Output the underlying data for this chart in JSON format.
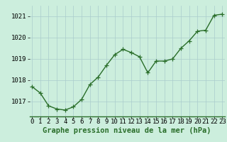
{
  "x": [
    0,
    1,
    2,
    3,
    4,
    5,
    6,
    7,
    8,
    9,
    10,
    11,
    12,
    13,
    14,
    15,
    16,
    17,
    18,
    19,
    20,
    21,
    22,
    23
  ],
  "y": [
    1017.7,
    1017.4,
    1016.8,
    1016.65,
    1016.6,
    1016.75,
    1017.1,
    1017.8,
    1018.15,
    1018.7,
    1019.2,
    1019.45,
    1019.3,
    1019.1,
    1018.35,
    1018.9,
    1018.9,
    1019.0,
    1019.5,
    1019.85,
    1020.3,
    1020.35,
    1021.05,
    1021.1
  ],
  "line_color": "#2a6e2a",
  "marker_color": "#2a6e2a",
  "bg_color": "#cceedd",
  "grid_color": "#aacccc",
  "bottom_bar_color": "#2a6e2a",
  "xlabel": "Graphe pression niveau de la mer (hPa)",
  "xlabel_fontsize": 7.5,
  "tick_fontsize": 6.5,
  "ylim": [
    1016.3,
    1021.5
  ],
  "yticks": [
    1017,
    1018,
    1019,
    1020,
    1021
  ],
  "xlim": [
    -0.3,
    23.3
  ],
  "marker_size": 4,
  "line_width": 1.0
}
